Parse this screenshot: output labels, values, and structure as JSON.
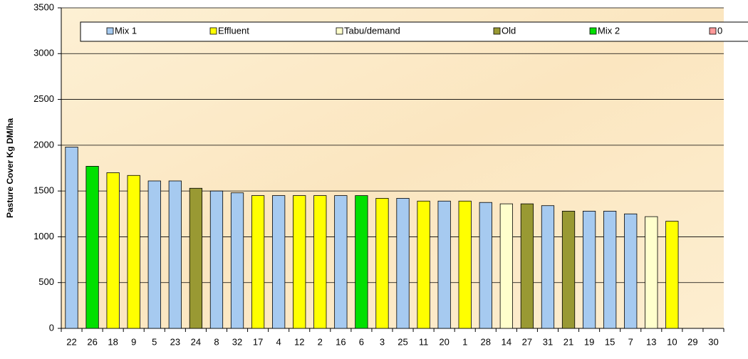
{
  "chart_data": {
    "type": "bar",
    "ylabel": "Pasture Cover Kg DM/ha",
    "categories": [
      "22",
      "26",
      "18",
      "9",
      "5",
      "23",
      "24",
      "8",
      "32",
      "17",
      "4",
      "12",
      "2",
      "16",
      "6",
      "3",
      "25",
      "11",
      "20",
      "1",
      "28",
      "14",
      "27",
      "31",
      "21",
      "19",
      "15",
      "7",
      "13",
      "10",
      "29",
      "30"
    ],
    "series": [
      {
        "name": "Mix 1",
        "color": "#a6caf0",
        "values": [
          1980,
          null,
          null,
          null,
          1610,
          1610,
          null,
          1500,
          1480,
          null,
          1450,
          null,
          null,
          1450,
          null,
          null,
          1420,
          null,
          1390,
          null,
          1375,
          null,
          null,
          1340,
          null,
          1280,
          1280,
          1250,
          null,
          null,
          null,
          null
        ]
      },
      {
        "name": "Effluent",
        "color": "#ffff00",
        "values": [
          null,
          null,
          1700,
          1670,
          null,
          null,
          null,
          null,
          null,
          1450,
          null,
          1450,
          1450,
          null,
          null,
          1420,
          null,
          1390,
          null,
          1390,
          null,
          null,
          null,
          null,
          null,
          null,
          null,
          null,
          null,
          1170,
          null,
          null
        ]
      },
      {
        "name": "Tabu/demand",
        "color": "#ffffcc",
        "values": [
          null,
          null,
          null,
          null,
          null,
          null,
          null,
          null,
          null,
          null,
          null,
          null,
          null,
          null,
          null,
          null,
          null,
          null,
          null,
          null,
          null,
          1360,
          null,
          null,
          null,
          null,
          null,
          null,
          1220,
          null,
          null,
          null
        ]
      },
      {
        "name": "Old",
        "color": "#999933",
        "values": [
          null,
          null,
          null,
          null,
          null,
          null,
          1530,
          null,
          null,
          null,
          null,
          null,
          null,
          null,
          null,
          null,
          null,
          null,
          null,
          null,
          null,
          null,
          1360,
          null,
          1280,
          null,
          null,
          null,
          null,
          null,
          null,
          null
        ]
      },
      {
        "name": "Mix 2",
        "color": "#00e000",
        "values": [
          null,
          1770,
          null,
          null,
          null,
          null,
          null,
          null,
          null,
          null,
          null,
          null,
          null,
          null,
          1450,
          null,
          null,
          null,
          null,
          null,
          null,
          null,
          null,
          null,
          null,
          null,
          null,
          null,
          null,
          null,
          null,
          null
        ]
      },
      {
        "name": "0",
        "color": "#ff9999",
        "values": [
          null,
          null,
          null,
          null,
          null,
          null,
          null,
          null,
          null,
          null,
          null,
          null,
          null,
          null,
          null,
          null,
          null,
          null,
          null,
          null,
          null,
          null,
          null,
          null,
          null,
          null,
          null,
          null,
          null,
          null,
          null,
          null
        ]
      }
    ],
    "ylim": [
      0,
      3500
    ],
    "yticks": [
      0,
      500,
      1000,
      1500,
      2000,
      2500,
      3000,
      3500
    ],
    "grid": true,
    "legend": "top"
  }
}
